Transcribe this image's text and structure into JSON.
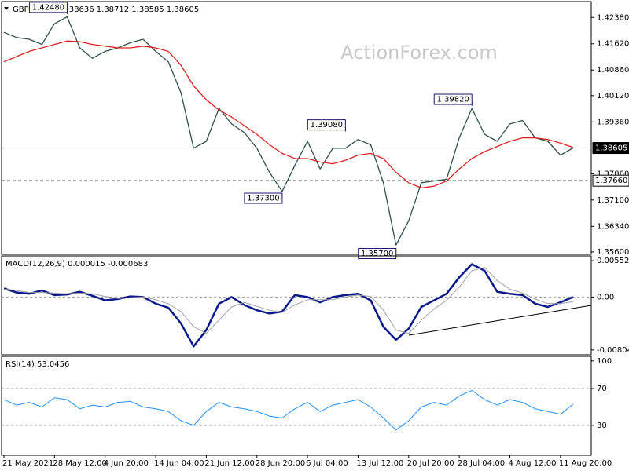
{
  "watermark": "ActionForex.com",
  "chart_data": [
    {
      "type": "line",
      "title": "GBPUSD,H4  1.38636 1.38712 1.38585 1.38605",
      "series": [
        {
          "color": "#2f4f4f",
          "values": [
            1.4195,
            1.418,
            1.4175,
            1.416,
            1.422,
            1.424,
            1.415,
            1.412,
            1.414,
            1.415,
            1.4165,
            1.4175,
            1.414,
            1.411,
            1.402,
            1.386,
            1.388,
            1.3975,
            1.393,
            1.3905,
            1.386,
            1.379,
            1.3735,
            1.381,
            1.388,
            1.38,
            1.386,
            1.386,
            1.3885,
            1.387,
            1.376,
            1.358,
            1.365,
            1.376,
            1.3765,
            1.377,
            1.389,
            1.3975,
            1.39,
            1.388,
            1.393,
            1.394,
            1.389,
            1.388,
            1.384,
            1.38605
          ]
        },
        {
          "color": "#e02020",
          "values": [
            1.411,
            1.4125,
            1.414,
            1.415,
            1.416,
            1.417,
            1.4168,
            1.416,
            1.4155,
            1.415,
            1.415,
            1.4155,
            1.415,
            1.414,
            1.41,
            1.404,
            1.4,
            1.397,
            1.395,
            1.3925,
            1.39,
            1.387,
            1.3845,
            1.383,
            1.383,
            1.382,
            1.3815,
            1.3825,
            1.384,
            1.3845,
            1.383,
            1.379,
            1.376,
            1.3745,
            1.375,
            1.3765,
            1.38,
            1.383,
            1.385,
            1.3865,
            1.388,
            1.389,
            1.389,
            1.3885,
            1.3875,
            1.3862
          ]
        }
      ],
      "ylim": [
        1.3553,
        1.4284
      ],
      "yticks": [
        {
          "value": 1.4238,
          "label": "1.42380"
        },
        {
          "value": 1.4162,
          "label": "1.41620"
        },
        {
          "value": 1.4086,
          "label": "1.40860"
        },
        {
          "value": 1.4012,
          "label": "1.40120"
        },
        {
          "value": 1.3936,
          "label": "1.39360"
        },
        {
          "value": 1.3786,
          "label": "1.37860"
        },
        {
          "value": 1.371,
          "label": "1.37100"
        },
        {
          "value": 1.3634,
          "label": "1.36340"
        },
        {
          "value": 1.356,
          "label": "1.35600"
        }
      ],
      "hlines": [
        {
          "value": 1.38605,
          "label": "1.38605",
          "style": "solid"
        },
        {
          "value": 1.3766,
          "label": "1.37660",
          "style": "dashed"
        }
      ],
      "annotations": [
        {
          "x": 5,
          "value": 1.4248,
          "label": "1.42480",
          "position": "above"
        },
        {
          "x": 22,
          "value": 1.373,
          "label": "1.37300",
          "position": "below"
        },
        {
          "x": 27,
          "value": 1.3908,
          "label": "1.39080",
          "position": "above"
        },
        {
          "x": 31,
          "value": 1.357,
          "label": "1.35700",
          "position": "below"
        },
        {
          "x": 37,
          "value": 1.3982,
          "label": "1.39820",
          "position": "above"
        }
      ]
    },
    {
      "type": "line",
      "title": "MACD(12,26,9) 0.000015 -0.000683",
      "series": [
        {
          "color": "#0a1a8c",
          "width": 2.5,
          "values": [
            0.0013,
            0.0007,
            0.0005,
            0.001,
            0.0003,
            0.0004,
            0.0008,
            0.0002,
            -0.0005,
            -0.0003,
            0.0001,
            0.0,
            -0.001,
            -0.0016,
            -0.004,
            -0.0075,
            -0.005,
            -0.001,
            0.0,
            -0.0012,
            -0.002,
            -0.0025,
            -0.0022,
            0.0003,
            0.0,
            -0.0008,
            0.0,
            0.0003,
            0.0005,
            -0.0005,
            -0.0045,
            -0.0065,
            -0.0048,
            -0.0015,
            -0.0005,
            0.0005,
            0.003,
            0.005,
            0.004,
            0.0008,
            0.0005,
            0.0003,
            -0.001,
            -0.0015,
            -0.0008,
            1.5e-05
          ]
        },
        {
          "color": "#a0a0a0",
          "width": 1,
          "values": [
            0.0012,
            0.001,
            0.0007,
            0.0007,
            0.0006,
            0.0005,
            0.0006,
            0.0005,
            0.0001,
            -0.0002,
            -0.0001,
            0.0,
            -0.0004,
            -0.001,
            -0.0022,
            -0.0045,
            -0.0055,
            -0.0035,
            -0.0015,
            -0.0008,
            -0.0014,
            -0.002,
            -0.0023,
            -0.0012,
            -0.0004,
            -0.0004,
            -0.0004,
            0.0,
            0.0003,
            0.0001,
            -0.002,
            -0.005,
            -0.0055,
            -0.0035,
            -0.0018,
            -0.0005,
            0.0015,
            0.004,
            0.0045,
            0.0025,
            0.0012,
            0.0006,
            -0.0003,
            -0.001,
            -0.001,
            -0.000683
          ]
        }
      ],
      "ylim": [
        -0.00877,
        0.00625
      ],
      "yticks": [
        0.00552,
        {
          "value": 0,
          "label": "0.00"
        },
        -0.00804
      ],
      "levels": [
        0
      ]
    },
    {
      "type": "line",
      "title": "RSI(14) 53.0456",
      "categories": [
        "21 May 2021",
        null,
        null,
        null,
        "28 May 12:00",
        null,
        null,
        null,
        "4 Jun 20:00",
        null,
        null,
        null,
        "14 Jun 04:00",
        null,
        null,
        null,
        "21 Jun 12:00",
        null,
        null,
        null,
        "28 Jun 20:00",
        null,
        null,
        null,
        "6 Jul 04:00",
        null,
        null,
        null,
        "13 Jul 12:00",
        null,
        null,
        null,
        "20 Jul 20:00",
        null,
        null,
        null,
        "28 Jul 04:00",
        null,
        null,
        null,
        "4 Aug 12:00",
        null,
        null,
        null,
        "11 Aug 20:00",
        null
      ],
      "series": [
        {
          "color": "#1e90ff",
          "width": 1,
          "values": [
            58,
            52,
            55,
            50,
            60,
            58,
            48,
            52,
            50,
            55,
            56,
            50,
            48,
            45,
            35,
            30,
            45,
            55,
            50,
            48,
            45,
            40,
            38,
            48,
            55,
            45,
            52,
            55,
            58,
            50,
            38,
            25,
            35,
            50,
            55,
            52,
            62,
            68,
            58,
            52,
            58,
            55,
            48,
            45,
            42,
            53.0456
          ]
        }
      ],
      "ylim": [
        -2.5,
        105
      ],
      "yticks": [
        100,
        70,
        30
      ],
      "levels": [
        70,
        30
      ]
    }
  ]
}
